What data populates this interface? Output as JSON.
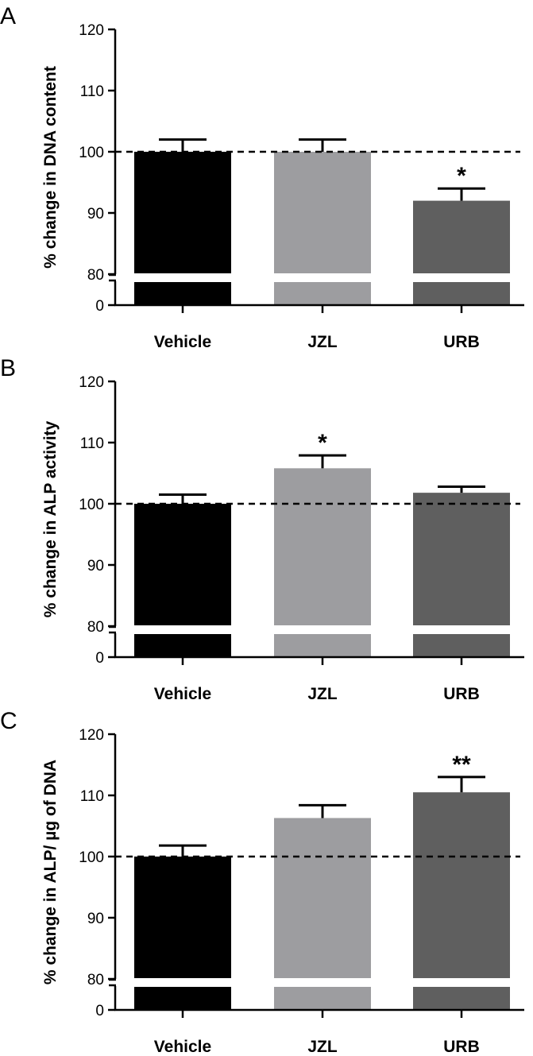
{
  "chart_data": [
    {
      "type": "bar",
      "panel_label": "A",
      "ylabel": "% change in DNA content",
      "categories": [
        "Vehicle",
        "JZL",
        "URB"
      ],
      "values": [
        100,
        100,
        92
      ],
      "errors": [
        2,
        2,
        2
      ],
      "significance": [
        "",
        "",
        "*"
      ],
      "colors": [
        "#000000",
        "#9d9da0",
        "#5f5f5f"
      ],
      "ylim": [
        80,
        120
      ],
      "yticks": [
        80,
        90,
        100,
        110,
        120
      ],
      "axis_break": true,
      "lower_tick": 0,
      "reference_line": 100
    },
    {
      "type": "bar",
      "panel_label": "B",
      "ylabel": "% change in ALP activity",
      "categories": [
        "Vehicle",
        "JZL",
        "URB"
      ],
      "values": [
        100,
        105.8,
        101.8
      ],
      "errors": [
        1.5,
        2.1,
        1
      ],
      "significance": [
        "",
        "*",
        ""
      ],
      "colors": [
        "#000000",
        "#9d9da0",
        "#5f5f5f"
      ],
      "ylim": [
        80,
        120
      ],
      "yticks": [
        80,
        90,
        100,
        110,
        120
      ],
      "axis_break": true,
      "lower_tick": 0,
      "reference_line": 100
    },
    {
      "type": "bar",
      "panel_label": "C",
      "ylabel": "% change in ALP/ µg of DNA",
      "categories": [
        "Vehicle",
        "JZL",
        "URB"
      ],
      "values": [
        100,
        106.3,
        110.5
      ],
      "errors": [
        1.8,
        2.1,
        2.5
      ],
      "significance": [
        "",
        "",
        "**"
      ],
      "colors": [
        "#000000",
        "#9d9da0",
        "#5f5f5f"
      ],
      "ylim": [
        80,
        120
      ],
      "yticks": [
        80,
        90,
        100,
        110,
        120
      ],
      "axis_break": true,
      "lower_tick": 0,
      "reference_line": 100
    }
  ]
}
